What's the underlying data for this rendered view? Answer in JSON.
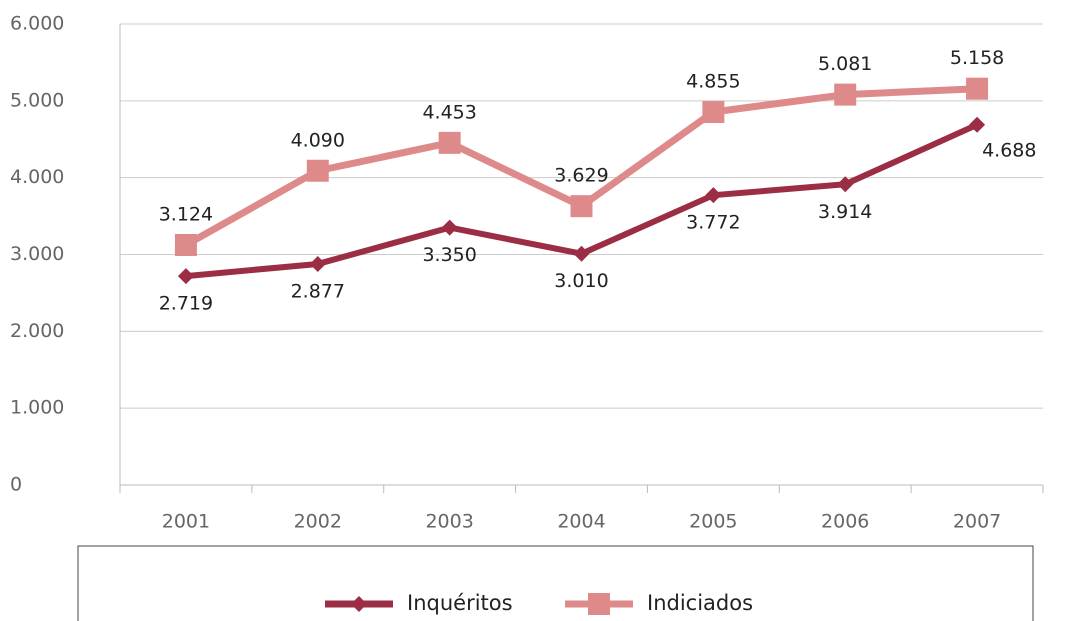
{
  "chart_data": {
    "type": "line",
    "categories": [
      "2001",
      "2002",
      "2003",
      "2004",
      "2005",
      "2006",
      "2007"
    ],
    "series": [
      {
        "name": "Inquéritos",
        "color": "#9b2d45",
        "marker": "diamond",
        "values": [
          2719,
          2877,
          3350,
          3010,
          3772,
          3914,
          4688
        ],
        "value_labels": [
          "2.719",
          "2.877",
          "3.350",
          "3.010",
          "3.772",
          "3.914",
          "4.688"
        ]
      },
      {
        "name": "Indiciados",
        "color": "#de8a8a",
        "marker": "square",
        "values": [
          3124,
          4090,
          4453,
          3629,
          4855,
          5081,
          5158
        ],
        "value_labels": [
          "3.124",
          "4.090",
          "4.453",
          "3.629",
          "4.855",
          "5.081",
          "5.158"
        ]
      }
    ],
    "ylim": [
      0,
      6000
    ],
    "yticks": [
      {
        "value": 0,
        "label": "0"
      },
      {
        "value": 1000,
        "label": "1.000"
      },
      {
        "value": 2000,
        "label": "2.000"
      },
      {
        "value": 3000,
        "label": "3.000"
      },
      {
        "value": 4000,
        "label": "4.000"
      },
      {
        "value": 5000,
        "label": "5.000"
      },
      {
        "value": 6000,
        "label": "6.000"
      }
    ],
    "grid": true,
    "legend": "bottom"
  }
}
